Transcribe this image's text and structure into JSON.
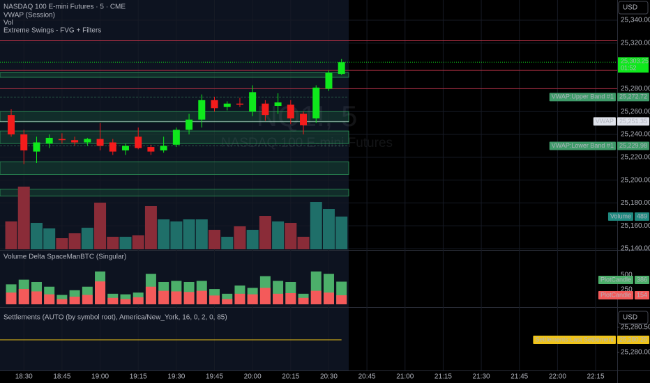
{
  "chart_data": [
    {
      "type": "candlestick",
      "title": "NASDAQ 100 E-mini Futures · 5 · CME",
      "legend_items": [
        "VWAP (Session)",
        "Vol",
        "Extreme Swings - FVG + Filters"
      ],
      "watermark": {
        "symbol": "NQ1!, 5",
        "name": "NASDAQ 100 E-mini Futures"
      },
      "currency": "USD",
      "x": [
        0,
        1,
        2,
        3,
        4,
        5,
        6,
        7,
        8,
        9,
        10,
        11,
        12,
        13,
        14,
        15,
        16,
        17,
        18,
        19,
        20,
        21,
        22,
        23,
        24,
        25,
        26
      ],
      "open": [
        25257,
        25240,
        25225,
        25232,
        25236,
        25235,
        25233,
        25236,
        25233,
        25226,
        25238,
        25229,
        25226,
        25231,
        25244,
        25253,
        25270,
        25264,
        25267,
        25260,
        25267,
        25265,
        25266,
        25258,
        25254,
        25280,
        25293
      ],
      "high": [
        25262,
        25244,
        25238,
        25240,
        25241,
        25238,
        25237,
        25250,
        25236,
        25232,
        25246,
        25231,
        25238,
        25246,
        25258,
        25275,
        25273,
        25269,
        25272,
        25283,
        25270,
        25276,
        25270,
        25260,
        25283,
        25296,
        25306
      ],
      "low": [
        25238,
        25214,
        25215,
        25228,
        25232,
        25230,
        25230,
        25226,
        25222,
        25222,
        25227,
        25222,
        25224,
        25229,
        25240,
        25246,
        25260,
        25261,
        25264,
        25256,
        25252,
        25258,
        25249,
        25240,
        25250,
        25278,
        25292
      ],
      "close": [
        25240,
        25226,
        25233,
        25237,
        25235,
        25233,
        25236,
        25230,
        25225,
        25230,
        25228,
        25225,
        25230,
        25244,
        25253,
        25270,
        25263,
        25267,
        25266,
        25277,
        25257,
        25268,
        25254,
        25248,
        25281,
        25294,
        25303.25
      ],
      "last_value_label": "25,303.25",
      "countdown": "01:52",
      "volume_name": "Volume",
      "volume": [
        416,
        936,
        395,
        312,
        166,
        239,
        322,
        697,
        187,
        187,
        208,
        645,
        447,
        416,
        447,
        447,
        291,
        187,
        343,
        291,
        499,
        416,
        395,
        187,
        707,
        603,
        489
      ],
      "up_color": "#0fe81c",
      "down_color": "#f41c1c",
      "volume_up_color": "#1f6f69",
      "volume_down_color": "#8a2c38",
      "levels": [
        {
          "name": "VWAP:Upper Band #1",
          "value": 25272.72,
          "label": "25,272.72",
          "color": "#3f9b6a"
        },
        {
          "name": "VWAP",
          "value": 25251.35,
          "label": "25,251.35",
          "color": "#e0e3eb"
        },
        {
          "name": "VWAP:Lower Band #1",
          "value": 25229.98,
          "label": "25,229.98",
          "color": "#3f9b6a"
        }
      ],
      "fvg_zones": [
        [
          25290,
          25294
        ],
        [
          25251,
          25260
        ],
        [
          25232,
          25243
        ],
        [
          25205,
          25216
        ],
        [
          25186,
          25192
        ]
      ],
      "resistance_lines": [
        25322,
        25296,
        25280
      ],
      "xlim": [
        -0.88,
        47.7
      ],
      "xticks": [
        {
          "value": 1,
          "label": "18:30"
        },
        {
          "value": 4,
          "label": "18:45"
        },
        {
          "value": 7,
          "label": "19:00"
        },
        {
          "value": 10,
          "label": "19:15"
        },
        {
          "value": 13,
          "label": "19:30"
        },
        {
          "value": 16,
          "label": "19:45"
        },
        {
          "value": 19,
          "label": "20:00"
        },
        {
          "value": 22,
          "label": "20:15"
        },
        {
          "value": 25,
          "label": "20:30"
        },
        {
          "value": 28,
          "label": "20:45"
        },
        {
          "value": 31,
          "label": "21:00"
        },
        {
          "value": 34,
          "label": "21:15"
        },
        {
          "value": 37,
          "label": "21:30"
        },
        {
          "value": 40,
          "label": "21:45"
        },
        {
          "value": 43,
          "label": "22:00"
        },
        {
          "value": 46,
          "label": "22:15"
        }
      ],
      "ylim": [
        25139.4,
        25357.7
      ],
      "yticks": [
        {
          "value": 25340,
          "label": "25,340.00"
        },
        {
          "value": 25320,
          "label": "25,320.00"
        },
        {
          "value": 25280,
          "label": "25,280.00"
        },
        {
          "value": 25260,
          "label": "25,260.00"
        },
        {
          "value": 25240,
          "label": "25,240.00"
        },
        {
          "value": 25220,
          "label": "25,220.00"
        },
        {
          "value": 25200,
          "label": "25,200.00"
        },
        {
          "value": 25180,
          "label": "25,180.00"
        },
        {
          "value": 25160,
          "label": "25,160.00"
        },
        {
          "value": 25140,
          "label": "25,140.00"
        }
      ],
      "grid": true
    },
    {
      "type": "bar",
      "title": "Volume Delta SpaceManBTC (Singular)",
      "series": [
        {
          "name": "PlotCandle",
          "color": "#4caf6a",
          "values": [
            340,
            420,
            380,
            300,
            160,
            240,
            300,
            560,
            180,
            170,
            200,
            520,
            380,
            400,
            380,
            400,
            260,
            180,
            320,
            280,
            480,
            400,
            380,
            180,
            560,
            520,
            386
          ]
        },
        {
          "name": "PlotCandle",
          "color": "#f45a5a",
          "values": [
            200,
            260,
            220,
            170,
            90,
            130,
            160,
            390,
            110,
            90,
            120,
            300,
            230,
            220,
            210,
            230,
            150,
            90,
            180,
            170,
            280,
            180,
            190,
            110,
            230,
            200,
            154
          ]
        }
      ],
      "ylim": [
        0,
        890
      ],
      "yticks": [
        250,
        500
      ]
    },
    {
      "type": "line",
      "title": "Settlements (AUTO (by symbol root), America/New_York, 16, 0, 2, 0, 85)",
      "currency": "USD",
      "series": [
        {
          "name": "Settlements:Last Settlement",
          "color": "#f0c419",
          "values": [
            25280.25
          ],
          "value_labels": [
            "25,280.25"
          ]
        }
      ],
      "ylim": [
        25279.64,
        25280.875
      ],
      "yticks": [
        {
          "value": 25280.5,
          "label": "25,280.50"
        },
        {
          "value": 25280,
          "label": "25,280.00"
        }
      ]
    }
  ]
}
